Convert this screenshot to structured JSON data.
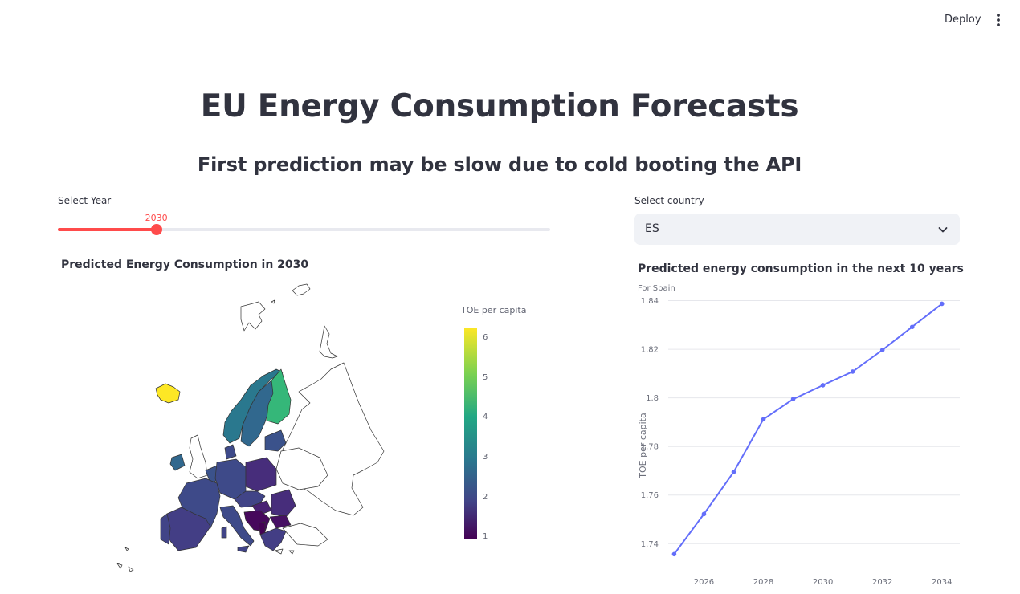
{
  "header": {
    "deploy_label": "Deploy",
    "menu_icon": "kebab-vertical-icon"
  },
  "page": {
    "title": "EU Energy Consumption Forecasts",
    "subtitle": "First prediction may be slow due to cold booting the API"
  },
  "year_slider": {
    "label": "Select Year",
    "value": 2030,
    "value_label": "2030",
    "fill_fraction": 0.2
  },
  "country_select": {
    "label": "Select country",
    "value": "ES",
    "icon": "chevron-down-icon"
  },
  "map": {
    "title": "Predicted Energy Consumption in 2030",
    "colorbar_title": "TOE per capita",
    "colorbar_ticks": [
      "6",
      "5",
      "4",
      "3",
      "2",
      "1"
    ],
    "colorscale": [
      "#fde725",
      "#7ad151",
      "#22a884",
      "#2a788e",
      "#414487",
      "#440154"
    ]
  },
  "chart_data": {
    "type": "line",
    "title": "Predicted energy consumption in the next 10 years",
    "subtitle": "For Spain",
    "xlabel": "",
    "ylabel": "TOE per capita",
    "x": [
      2025,
      2026,
      2027,
      2028,
      2029,
      2030,
      2031,
      2032,
      2033,
      2034
    ],
    "y": [
      1.7357,
      1.7522,
      1.7695,
      1.7912,
      1.7995,
      1.8052,
      1.8108,
      1.8197,
      1.8292,
      1.8387
    ],
    "x_ticks": [
      "2026",
      "2028",
      "2030",
      "2032",
      "2034"
    ],
    "y_ticks": [
      "1.74",
      "1.76",
      "1.78",
      "1.8",
      "1.82",
      "1.84"
    ],
    "xlim": [
      2024.8,
      2034.6
    ],
    "ylim": [
      1.7325,
      1.8415
    ],
    "grid": true,
    "line_color": "#636efa"
  }
}
